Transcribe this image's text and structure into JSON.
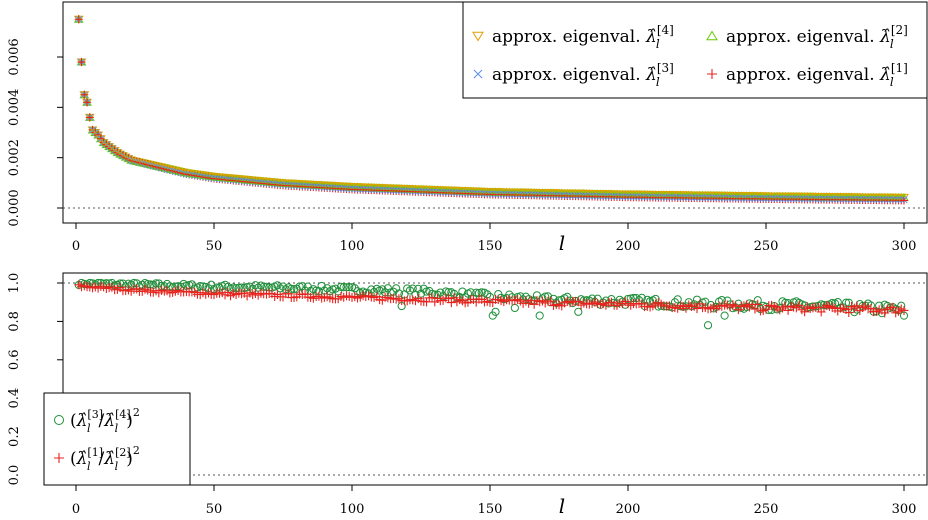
{
  "chart_data": [
    {
      "type": "scatter",
      "title": "",
      "xlabel": "l",
      "ylabel": "",
      "xlim": [
        0,
        300
      ],
      "ylim": [
        -0.0002,
        0.0076
      ],
      "x_ticks": [
        "0",
        "50",
        "100",
        "150",
        "200",
        "250",
        "300"
      ],
      "y_ticks": [
        "0.000",
        "0.002",
        "0.004",
        "0.006"
      ],
      "reference_lines": [
        0
      ],
      "legend_position": "top-right",
      "series": [
        {
          "name": "approx. eigenval. λ̂_l^[4]",
          "marker": "triangle-down",
          "color": "#e69f00"
        },
        {
          "name": "approx. eigenval. λ̂_l^[2]",
          "marker": "triangle-up",
          "color": "#66cc00"
        },
        {
          "name": "approx. eigenval. λ̂_l^[3]",
          "marker": "x",
          "color": "#5b8def"
        },
        {
          "name": "approx. eigenval. λ̂_l^[1]",
          "marker": "plus",
          "color": "#e8221c"
        }
      ],
      "x": [
        1,
        2,
        3,
        4,
        5,
        6,
        8,
        10,
        15,
        20,
        30,
        40,
        50,
        75,
        100,
        150,
        200,
        250,
        300
      ],
      "values_by_series": {
        "lambda4": [
          0.0075,
          0.0058,
          0.0045,
          0.0042,
          0.0036,
          0.0031,
          0.0029,
          0.0026,
          0.0022,
          0.0019,
          0.00165,
          0.0014,
          0.00125,
          0.001,
          0.00085,
          0.00065,
          0.00055,
          0.00048,
          0.00042
        ],
        "lambda2": [
          0.0075,
          0.0058,
          0.0045,
          0.0042,
          0.0036,
          0.0031,
          0.0029,
          0.0026,
          0.0022,
          0.0019,
          0.00165,
          0.0014,
          0.00124,
          0.00099,
          0.00084,
          0.00064,
          0.00054,
          0.00047,
          0.00041
        ],
        "lambda3": [
          0.0075,
          0.0058,
          0.0045,
          0.0042,
          0.0036,
          0.0031,
          0.0029,
          0.0026,
          0.0022,
          0.0019,
          0.00162,
          0.00135,
          0.00118,
          0.00092,
          0.00076,
          0.00056,
          0.00045,
          0.00038,
          0.00033
        ],
        "lambda1": [
          0.0075,
          0.0058,
          0.0045,
          0.0042,
          0.0036,
          0.0031,
          0.0029,
          0.0026,
          0.0022,
          0.0019,
          0.00162,
          0.00135,
          0.00117,
          0.0009,
          0.00074,
          0.00054,
          0.00043,
          0.00036,
          0.0003
        ]
      }
    },
    {
      "type": "scatter",
      "title": "",
      "xlabel": "l",
      "ylabel": "",
      "xlim": [
        0,
        300
      ],
      "ylim": [
        -0.03,
        1.03
      ],
      "x_ticks": [
        "0",
        "50",
        "100",
        "150",
        "200",
        "250",
        "300"
      ],
      "y_ticks": [
        "0.0",
        "0.2",
        "0.4",
        "0.6",
        "0.8",
        "1.0"
      ],
      "reference_lines": [
        0,
        1
      ],
      "legend_position": "bottom-left",
      "series": [
        {
          "name": "(λ̂_l^[3] / λ̂_l^[4])^2",
          "marker": "circle",
          "color": "#1f8f3a"
        },
        {
          "name": "(λ̂_l^[1] / λ̂_l^[2])^2",
          "marker": "plus",
          "color": "#e8221c"
        }
      ],
      "x": [
        1,
        10,
        25,
        50,
        75,
        100,
        125,
        150,
        175,
        200,
        225,
        250,
        275,
        300
      ],
      "values_by_series": {
        "ratio34": [
          1.0,
          0.995,
          0.99,
          0.98,
          0.975,
          0.965,
          0.955,
          0.93,
          0.91,
          0.905,
          0.89,
          0.885,
          0.875,
          0.86
        ],
        "ratio12": [
          0.985,
          0.975,
          0.96,
          0.945,
          0.935,
          0.925,
          0.915,
          0.905,
          0.895,
          0.89,
          0.88,
          0.87,
          0.865,
          0.86
        ]
      },
      "notable_outliers_ratio34": [
        [
          118,
          0.88
        ],
        [
          151,
          0.83
        ],
        [
          152,
          0.85
        ],
        [
          159,
          0.87
        ],
        [
          168,
          0.83
        ],
        [
          182,
          0.85
        ],
        [
          229,
          0.78
        ],
        [
          235,
          0.83
        ],
        [
          300,
          0.83
        ]
      ]
    }
  ],
  "legend_text": {
    "prefix": "approx. eigenval.",
    "sup": [
      "[4]",
      "[2]",
      "[3]",
      "[1]"
    ],
    "sub": "l"
  }
}
